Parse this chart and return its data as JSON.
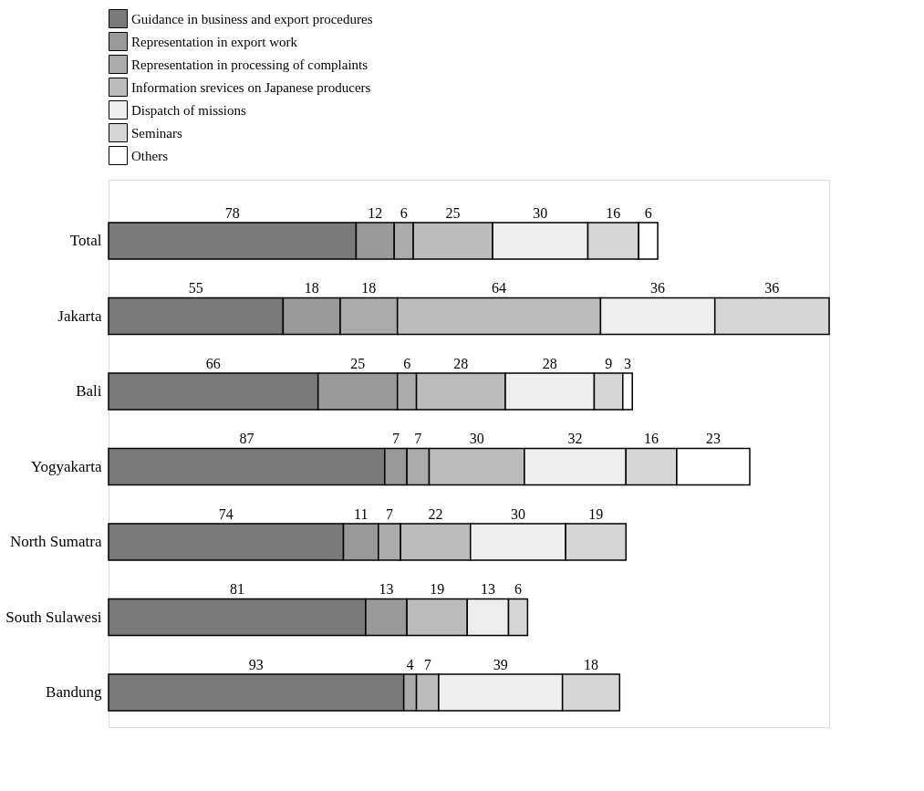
{
  "chart_data": {
    "type": "bar",
    "orientation": "horizontal",
    "stacked": true,
    "data_labels": true,
    "legend": "top",
    "categories": [
      "Total",
      "Jakarta",
      "Bali",
      "Yogyakarta",
      "North Sumatra",
      "South Sulawesi",
      "Bandung"
    ],
    "series": [
      {
        "name": "Guidance in business and export procedures",
        "color": "#7a7a7a",
        "values": [
          78,
          55,
          66,
          87,
          74,
          81,
          93
        ]
      },
      {
        "name": "Representation in export work",
        "color": "#999999",
        "values": [
          12,
          18,
          25,
          7,
          11,
          13,
          null
        ]
      },
      {
        "name": "Representation in processing of complaints",
        "color": "#ababab",
        "values": [
          6,
          18,
          6,
          7,
          7,
          null,
          4
        ]
      },
      {
        "name": "Information srevices on Japanese producers",
        "color": "#bcbcbc",
        "values": [
          25,
          64,
          28,
          30,
          22,
          19,
          7
        ]
      },
      {
        "name": "Dispatch of missions",
        "color": "#eeeeee",
        "values": [
          30,
          36,
          28,
          32,
          30,
          13,
          39
        ]
      },
      {
        "name": "Seminars",
        "color": "#d6d6d6",
        "values": [
          16,
          36,
          9,
          16,
          19,
          6,
          18
        ]
      },
      {
        "name": "Others",
        "color": "#ffffff",
        "values": [
          6,
          null,
          3,
          23,
          null,
          null,
          null
        ]
      }
    ]
  }
}
